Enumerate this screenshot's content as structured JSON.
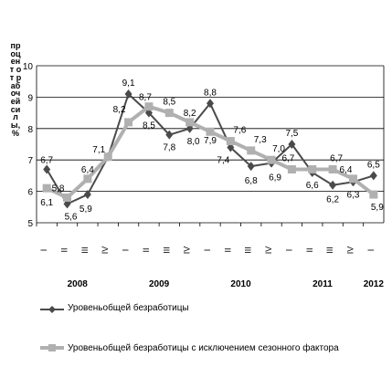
{
  "chart_data": {
    "type": "line",
    "ylabel": "процент от рабочей силы, %",
    "ylim": [
      5,
      10
    ],
    "yticks": [
      5,
      6,
      7,
      8,
      9,
      10
    ],
    "quarters": [
      "I",
      "II",
      "III",
      "IV",
      "I",
      "II",
      "III",
      "IV",
      "I",
      "II",
      "III",
      "IV",
      "I",
      "II",
      "III",
      "IV",
      "I"
    ],
    "years": [
      {
        "label": "2008",
        "start": 0,
        "end": 3
      },
      {
        "label": "2009",
        "start": 4,
        "end": 7
      },
      {
        "label": "2010",
        "start": 8,
        "end": 11
      },
      {
        "label": "2011",
        "start": 12,
        "end": 15
      },
      {
        "label": "2012",
        "start": 16,
        "end": 16
      }
    ],
    "series": [
      {
        "name": "Уровеньобщей безработицы",
        "color": "#4a4a4a",
        "marker": "diamond",
        "values": [
          6.7,
          5.6,
          5.9,
          7.1,
          9.1,
          8.5,
          7.8,
          8.0,
          8.8,
          7.4,
          6.8,
          6.9,
          7.5,
          6.6,
          6.2,
          6.3,
          6.5
        ],
        "labels": [
          "6,7",
          "5,6",
          "5,9",
          "7,1",
          "9,1",
          "8,5",
          "7,8",
          "8,0",
          "8,8",
          "7,4",
          "6,8",
          "6,9",
          "7,5",
          "6,6",
          "6,2",
          "6,3",
          "6,5"
        ]
      },
      {
        "name": "Уровеньобщей безработицы с исключением сезонного фактора",
        "color": "#b0b0b0",
        "marker": "square",
        "values": [
          6.1,
          5.8,
          6.4,
          7.1,
          8.2,
          8.7,
          8.5,
          8.2,
          7.9,
          7.6,
          7.3,
          7.0,
          6.7,
          6.7,
          6.7,
          6.4,
          5.9
        ],
        "labels": [
          "6,1",
          "5,8",
          "6,4",
          "",
          "8,2",
          "8,7",
          "8,5",
          "8,2",
          "7,9",
          "7,6",
          "7,3",
          "7,0",
          "6,7",
          "",
          "6,7",
          "6,4",
          "5,9"
        ]
      }
    ]
  }
}
